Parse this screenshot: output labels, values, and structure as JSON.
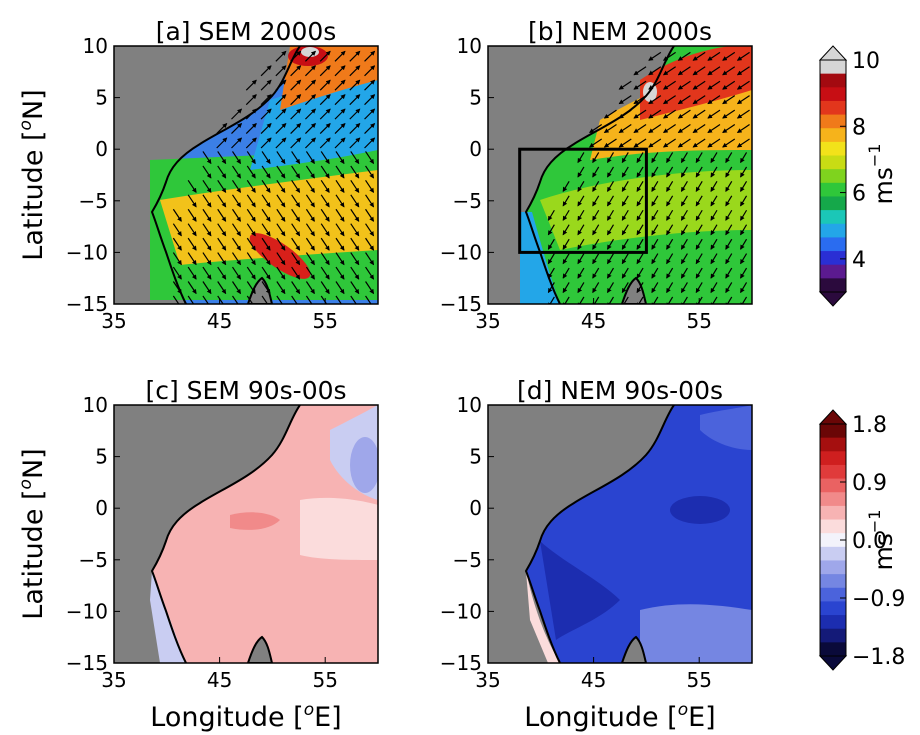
{
  "figure": {
    "y_label": "Latitude [",
    "y_label_sup": "o",
    "y_label_end": "N]",
    "x_label": "Longitude [",
    "x_label_sup": "o",
    "x_label_end": "E]"
  },
  "panels": [
    {
      "id": "a",
      "title": "[a] SEM 2000s",
      "field": "wind"
    },
    {
      "id": "b",
      "title": "[b] NEM 2000s",
      "field": "wind"
    },
    {
      "id": "c",
      "title": "[c] SEM 90s-00s",
      "field": "diff"
    },
    {
      "id": "d",
      "title": "[d] NEM 90s-00s",
      "field": "diff"
    }
  ],
  "axes": {
    "lon_ticks": [
      "35",
      "45",
      "55"
    ],
    "lat_ticks": [
      "10",
      "5",
      "0",
      "−5",
      "−10",
      "−15"
    ],
    "lon_range": [
      35,
      60
    ],
    "lat_range": [
      -15,
      10
    ]
  },
  "box_region": {
    "panel": "b",
    "lon": [
      38,
      50
    ],
    "lat": [
      -10,
      0
    ]
  },
  "colorbars": [
    {
      "id": "wind",
      "ticks": [
        "10",
        "8",
        "6",
        "4"
      ],
      "tick_values": [
        10,
        8,
        6,
        4
      ],
      "range": [
        3,
        10
      ],
      "unit": "ms",
      "unit_sup": "−1",
      "colors": [
        "#2b0a3d",
        "#5b1a8f",
        "#2a2fd4",
        "#2a6cf0",
        "#23a6e8",
        "#1bc7b7",
        "#15a84a",
        "#2fc73a",
        "#7fd31e",
        "#c8dc14",
        "#f2e21a",
        "#f6b31b",
        "#f07a1a",
        "#e2361c",
        "#c70e14",
        "#a30a10",
        "#d6d6d6"
      ]
    },
    {
      "id": "diff",
      "ticks": [
        "1.8",
        "0.9",
        "0.0",
        "−0.9",
        "−1.8"
      ],
      "tick_values": [
        1.8,
        0.9,
        0,
        -0.9,
        -1.8
      ],
      "range": [
        -1.8,
        1.8
      ],
      "unit": "ms",
      "unit_sup": "−1",
      "colors": [
        "#0a0a3a",
        "#141a78",
        "#1c2db0",
        "#2a44d0",
        "#4b63dc",
        "#7586e2",
        "#9fa7ea",
        "#c9cdf2",
        "#f3f3fb",
        "#fbdcdc",
        "#f7b3b3",
        "#f18a8a",
        "#ea6262",
        "#e03b3b",
        "#cf1f1f",
        "#a50f0f",
        "#6a0606"
      ]
    }
  ],
  "colors": {
    "land": "#808080",
    "coast": "#000000"
  }
}
